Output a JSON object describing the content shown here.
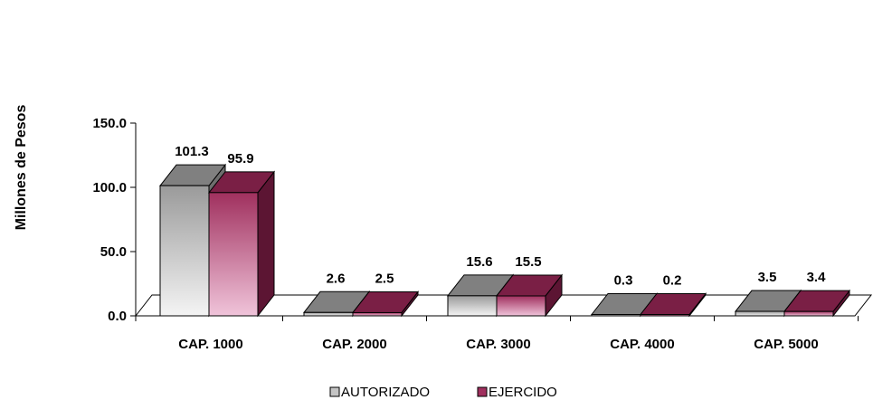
{
  "chart_data": {
    "type": "bar",
    "categories": [
      "CAP. 1000",
      "CAP. 2000",
      "CAP. 3000",
      "CAP. 4000",
      "CAP. 5000"
    ],
    "series": [
      {
        "name": "AUTORIZADO",
        "values": [
          101.3,
          2.6,
          15.6,
          0.3,
          3.5
        ],
        "labels": [
          "101.3",
          "2.6",
          "15.6",
          "0.3",
          "3.5"
        ]
      },
      {
        "name": "EJERCIDO",
        "values": [
          95.9,
          2.5,
          15.5,
          0.2,
          3.4
        ],
        "labels": [
          "95.9",
          "2.5",
          "15.5",
          "0.2",
          "3.4"
        ]
      }
    ],
    "ylabel": "Millones de Pesos",
    "ylim": [
      0,
      150
    ],
    "yticks": [
      "0.0",
      "50.0",
      "100.0",
      "150.0"
    ],
    "legend": "bottom",
    "three_d": true,
    "colors": {
      "autorizado_front": "#c4c4c4",
      "autorizado_top": "#808080",
      "autorizado_side": "#6e6e6e",
      "ejercido_front": "#a0305e",
      "ejercido_top": "#7a1f45",
      "ejercido_side": "#5c1533"
    }
  }
}
